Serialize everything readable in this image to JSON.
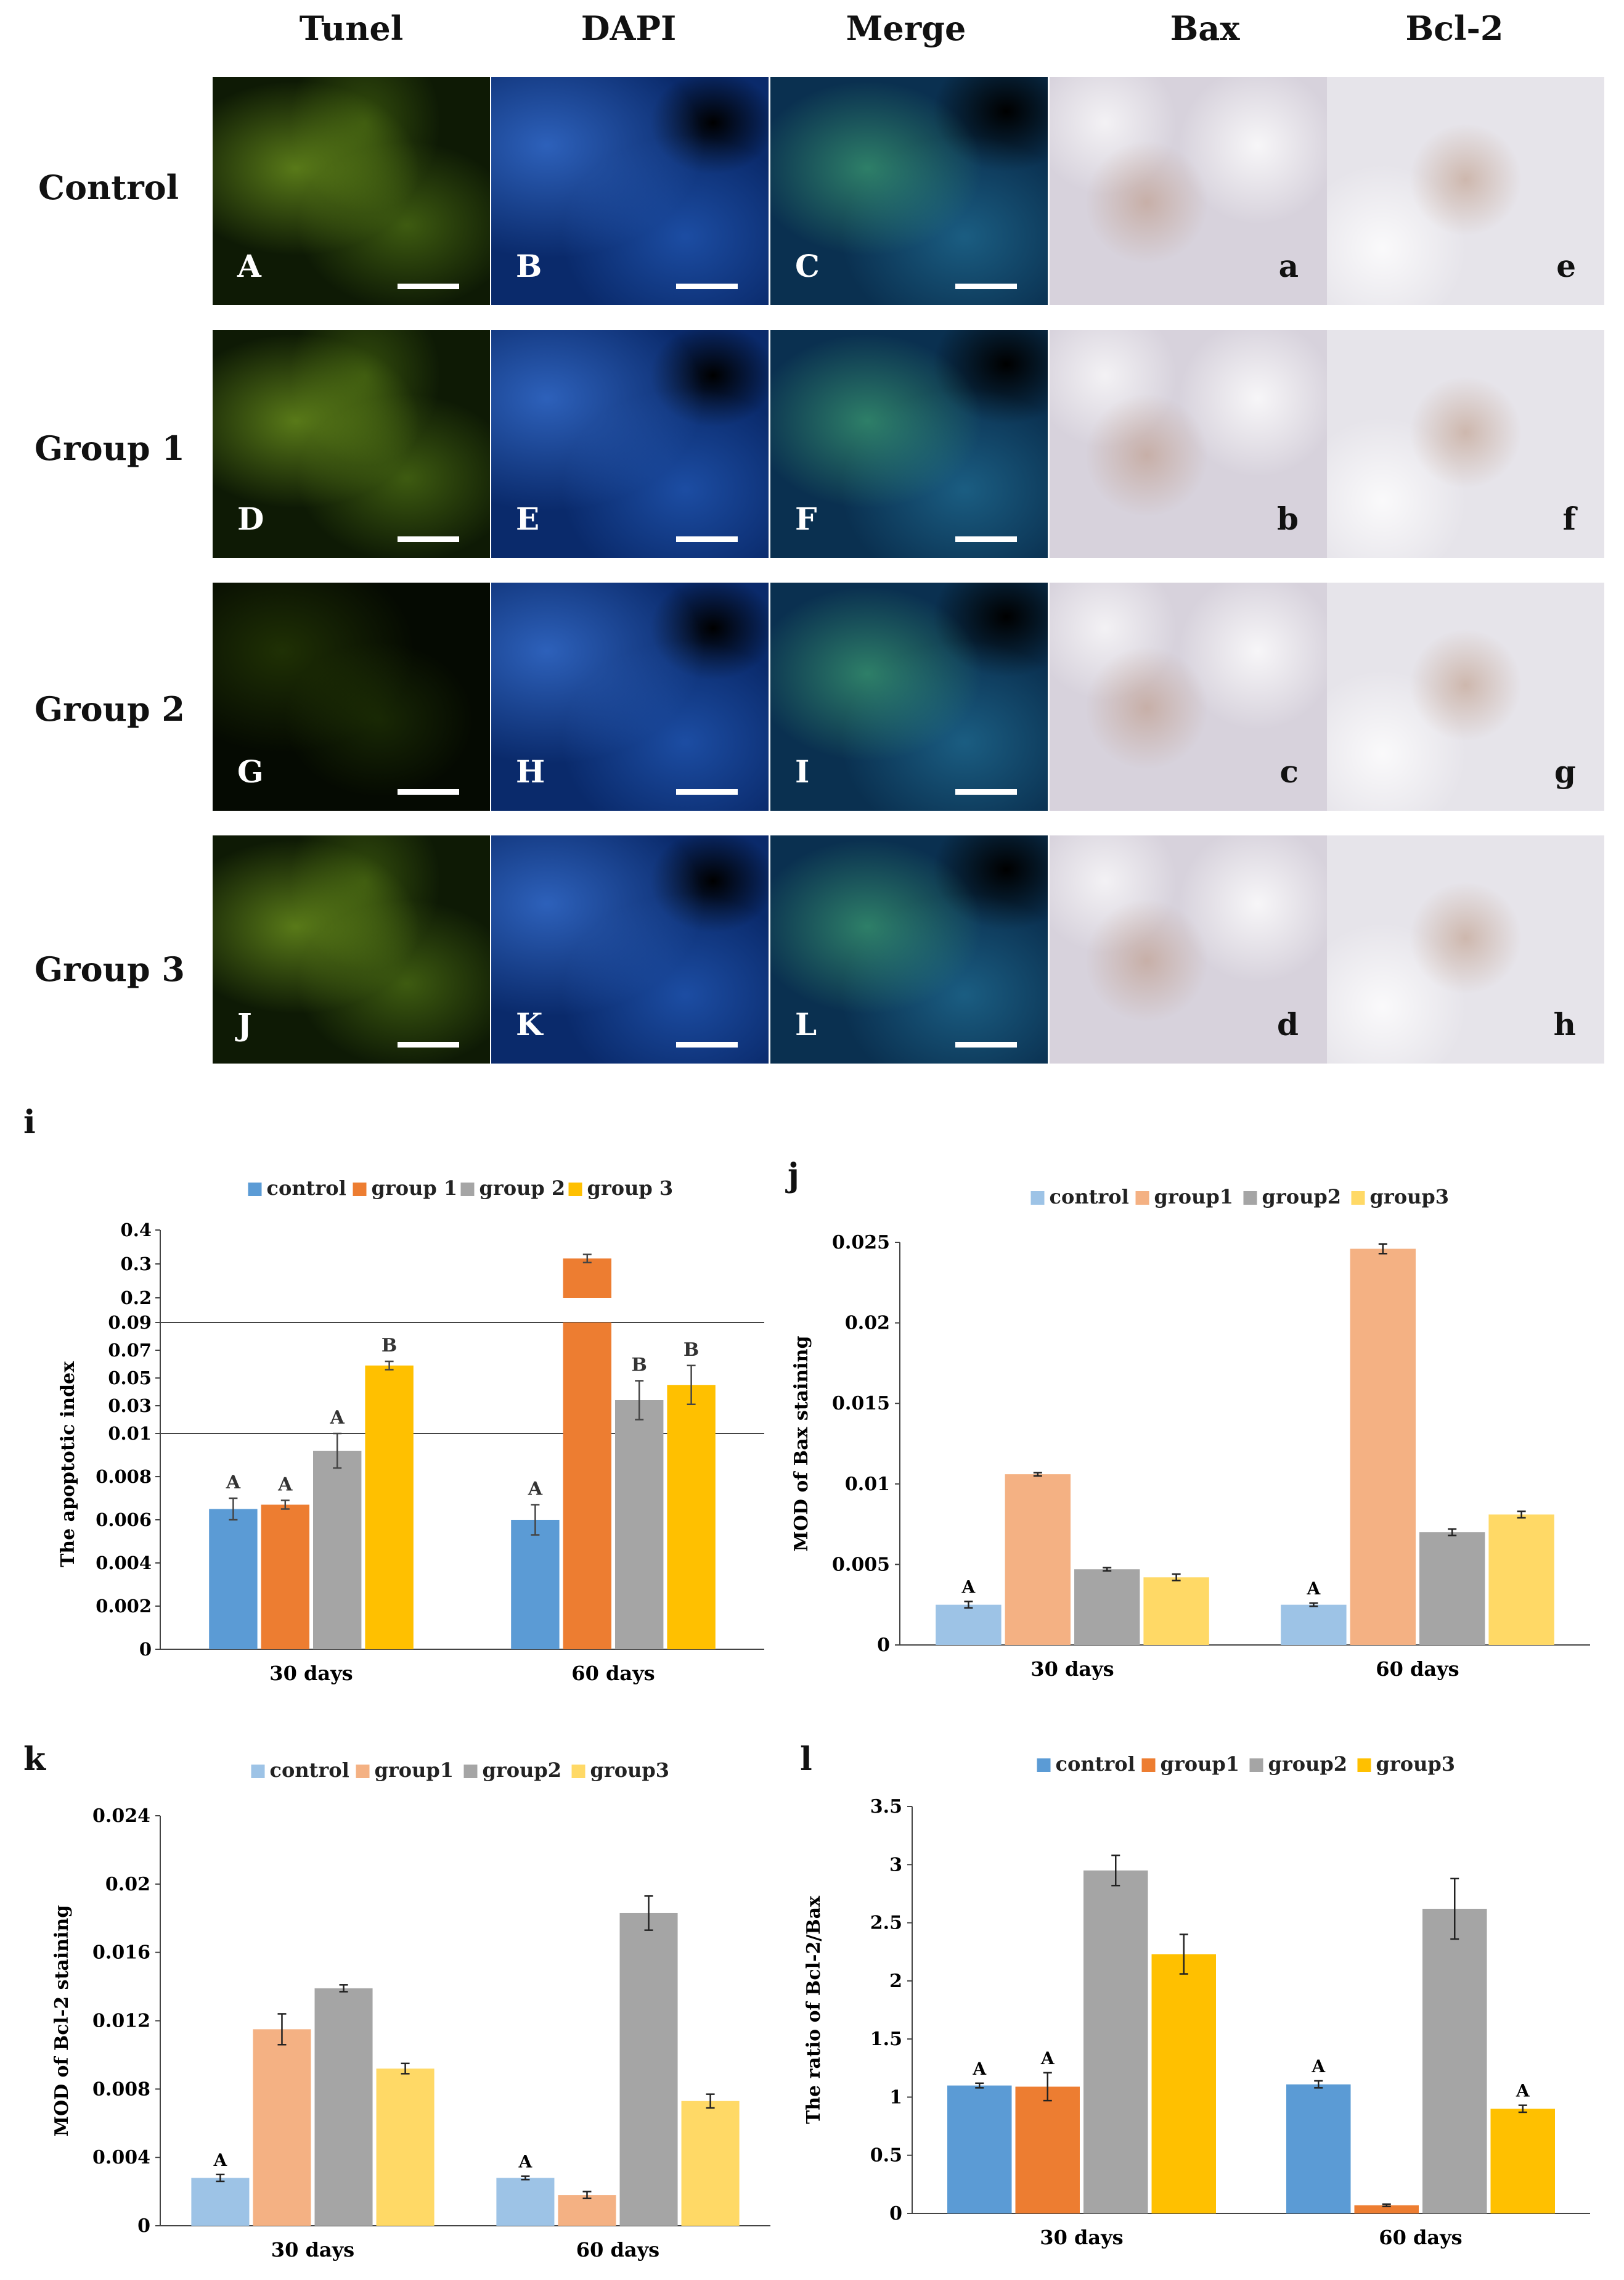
{
  "columns": [
    "Tunel",
    "DAPI",
    "Merge",
    "Bax",
    "Bcl-2"
  ],
  "rows": [
    "Control",
    "Group 1",
    "Group 2",
    "Group 3"
  ],
  "panel_letters": [
    [
      "A",
      "B",
      "C",
      "a",
      "e"
    ],
    [
      "D",
      "E",
      "F",
      "b",
      "f"
    ],
    [
      "G",
      "H",
      "I",
      "c",
      "g"
    ],
    [
      "J",
      "K",
      "L",
      "d",
      "h"
    ]
  ],
  "chart_data": [
    {
      "id": "i",
      "type": "bar",
      "categories": [
        "30 days",
        "60 days"
      ],
      "ylabel": "The apoptotic index",
      "broken_axis": true,
      "y_segments": [
        {
          "range": [
            0,
            0.01
          ],
          "ticks": [
            0,
            0.002,
            0.004,
            0.006,
            0.008,
            0.01
          ]
        },
        {
          "range": [
            0.01,
            0.09
          ],
          "ticks": [
            0.03,
            0.05,
            0.07,
            0.09
          ]
        },
        {
          "range": [
            0.2,
            0.4
          ],
          "ticks": [
            0.2,
            0.3,
            0.4
          ]
        }
      ],
      "tick_labels": [
        "0",
        "0.002",
        "0.004",
        "0.006",
        "0.008",
        "0.01",
        "0.03",
        "0.05",
        "0.07",
        "0.09",
        "0.2",
        "0.3",
        "0.4"
      ],
      "legend": [
        "control",
        "group 1",
        "group 2",
        "group 3"
      ],
      "colors": [
        "#5b9bd5",
        "#ed7d31",
        "#a5a5a5",
        "#ffc000"
      ],
      "series": [
        {
          "name": "control",
          "values": [
            0.0065,
            0.006
          ],
          "errors": [
            0.0005,
            0.0007
          ],
          "labels": [
            "A",
            "A"
          ]
        },
        {
          "name": "group 1",
          "values": [
            0.0067,
            0.316
          ],
          "errors": [
            0.0002,
            0.012
          ],
          "labels": [
            "A",
            ""
          ]
        },
        {
          "name": "group 2",
          "values": [
            0.0092,
            0.034
          ],
          "errors": [
            0.0008,
            0.014
          ],
          "labels": [
            "A",
            "B"
          ]
        },
        {
          "name": "group 3",
          "values": [
            0.059,
            0.045
          ],
          "errors": [
            0.003,
            0.014
          ],
          "labels": [
            "B",
            "B"
          ]
        }
      ]
    },
    {
      "id": "j",
      "type": "bar",
      "categories": [
        "30 days",
        "60 days"
      ],
      "ylabel": "MOD of Bax staining",
      "ylim": [
        0,
        0.025
      ],
      "ticks": [
        0,
        0.005,
        0.01,
        0.015,
        0.02,
        0.025
      ],
      "tick_labels": [
        "0",
        "0.005",
        "0.01",
        "0.015",
        "0.02",
        "0.025"
      ],
      "legend": [
        "control",
        "group1",
        "group2",
        "group3"
      ],
      "colors": [
        "#9dc3e6",
        "#f4b183",
        "#a5a5a5",
        "#ffd966"
      ],
      "series": [
        {
          "name": "control",
          "values": [
            0.0025,
            0.0025
          ],
          "errors": [
            0.0002,
            0.0001
          ],
          "labels": [
            "A",
            "A"
          ]
        },
        {
          "name": "group1",
          "values": [
            0.0106,
            0.0246
          ],
          "errors": [
            0.0001,
            0.0003
          ],
          "labels": [
            "",
            ""
          ]
        },
        {
          "name": "group2",
          "values": [
            0.0047,
            0.007
          ],
          "errors": [
            0.0001,
            0.0002
          ],
          "labels": [
            "",
            ""
          ]
        },
        {
          "name": "group3",
          "values": [
            0.0042,
            0.0081
          ],
          "errors": [
            0.0002,
            0.0002
          ],
          "labels": [
            "",
            ""
          ]
        }
      ]
    },
    {
      "id": "k",
      "type": "bar",
      "categories": [
        "30 days",
        "60 days"
      ],
      "ylabel": "MOD of Bcl-2 staining",
      "ylim": [
        0,
        0.024
      ],
      "ticks": [
        0,
        0.004,
        0.008,
        0.012,
        0.016,
        0.02,
        0.024
      ],
      "tick_labels": [
        "0",
        "0.004",
        "0.008",
        "0.012",
        "0.016",
        "0.02",
        "0.024"
      ],
      "legend": [
        "control",
        "group1",
        "group2",
        "group3"
      ],
      "colors": [
        "#9dc3e6",
        "#f4b183",
        "#a5a5a5",
        "#ffd966"
      ],
      "series": [
        {
          "name": "control",
          "values": [
            0.0028,
            0.0028
          ],
          "errors": [
            0.0002,
            0.0001
          ],
          "labels": [
            "A",
            "A"
          ]
        },
        {
          "name": "group1",
          "values": [
            0.0115,
            0.0018
          ],
          "errors": [
            0.0009,
            0.0002
          ],
          "labels": [
            "",
            ""
          ]
        },
        {
          "name": "group2",
          "values": [
            0.0139,
            0.0183
          ],
          "errors": [
            0.0002,
            0.001
          ],
          "labels": [
            "",
            ""
          ]
        },
        {
          "name": "group3",
          "values": [
            0.0092,
            0.0073
          ],
          "errors": [
            0.0003,
            0.0004
          ],
          "labels": [
            "",
            ""
          ]
        }
      ]
    },
    {
      "id": "l",
      "type": "bar",
      "categories": [
        "30 days",
        "60 days"
      ],
      "ylabel": "The ratio of Bcl-2/Bax",
      "ylim": [
        0,
        3.5
      ],
      "ticks": [
        0,
        0.5,
        1,
        1.5,
        2,
        2.5,
        3,
        3.5
      ],
      "tick_labels": [
        "0",
        "0.5",
        "1",
        "1.5",
        "2",
        "2.5",
        "3",
        "3.5"
      ],
      "legend": [
        "control",
        "group1",
        "group2",
        "group3"
      ],
      "colors": [
        "#5b9bd5",
        "#ed7d31",
        "#a5a5a5",
        "#ffc000"
      ],
      "series": [
        {
          "name": "control",
          "values": [
            1.1,
            1.11
          ],
          "errors": [
            0.02,
            0.03
          ],
          "labels": [
            "A",
            "A"
          ]
        },
        {
          "name": "group1",
          "values": [
            1.09,
            0.07
          ],
          "errors": [
            0.12,
            0.01
          ],
          "labels": [
            "A",
            ""
          ]
        },
        {
          "name": "group2",
          "values": [
            2.95,
            2.62
          ],
          "errors": [
            0.13,
            0.26
          ],
          "labels": [
            "",
            ""
          ]
        },
        {
          "name": "group3",
          "values": [
            2.23,
            0.9
          ],
          "errors": [
            0.17,
            0.03
          ],
          "labels": [
            "",
            "A"
          ]
        }
      ]
    }
  ]
}
